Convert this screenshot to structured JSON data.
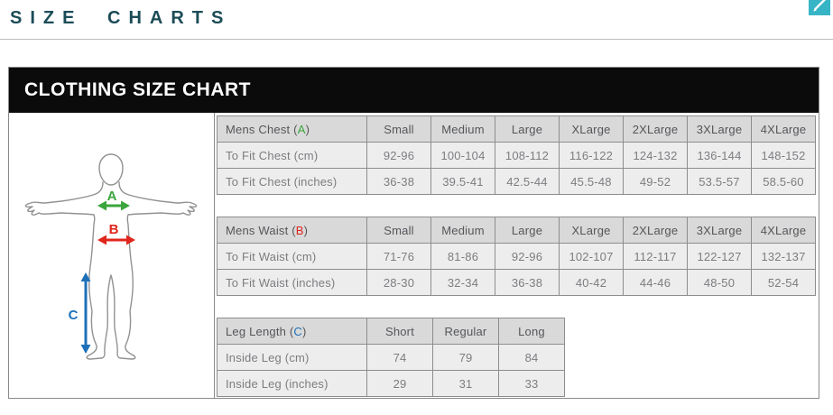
{
  "page": {
    "title": "SIZE CHARTS",
    "section_title": "CLOTHING SIZE CHART"
  },
  "edit_button": {
    "icon": "pencil-icon",
    "color": "#38b4c7"
  },
  "diagram": {
    "labels": {
      "chest": "A",
      "waist": "B",
      "leg": "C"
    },
    "colors": {
      "chest": "#3aa63c",
      "waist": "#e0251c",
      "leg": "#1d70b8",
      "body_outline": "#929292"
    }
  },
  "tables": [
    {
      "name": "mens-chest",
      "label_prefix": "Mens Chest (",
      "marker": "A",
      "label_suffix": ")",
      "marker_color": "#3aa63c",
      "columns": [
        "Small",
        "Medium",
        "Large",
        "XLarge",
        "2XLarge",
        "3XLarge",
        "4XLarge"
      ],
      "rows": [
        {
          "label": "To Fit Chest (cm)",
          "values": [
            "92-96",
            "100-104",
            "108-112",
            "116-122",
            "124-132",
            "136-144",
            "148-152"
          ]
        },
        {
          "label": "To Fit Chest (inches)",
          "values": [
            "36-38",
            "39.5-41",
            "42.5-44",
            "45.5-48",
            "49-52",
            "53.5-57",
            "58.5-60"
          ]
        }
      ]
    },
    {
      "name": "mens-waist",
      "label_prefix": "Mens Waist (",
      "marker": "B",
      "label_suffix": ")",
      "marker_color": "#e0251c",
      "columns": [
        "Small",
        "Medium",
        "Large",
        "XLarge",
        "2XLarge",
        "3XLarge",
        "4XLarge"
      ],
      "rows": [
        {
          "label": "To Fit Waist (cm)",
          "values": [
            "71-76",
            "81-86",
            "92-96",
            "102-107",
            "112-117",
            "122-127",
            "132-137"
          ]
        },
        {
          "label": "To Fit Waist (inches)",
          "values": [
            "28-30",
            "32-34",
            "36-38",
            "40-42",
            "44-46",
            "48-50",
            "52-54"
          ]
        }
      ]
    },
    {
      "name": "leg-length",
      "label_prefix": "Leg Length (",
      "marker": "C",
      "label_suffix": ")",
      "marker_color": "#1d70b8",
      "columns": [
        "Short",
        "Regular",
        "Long"
      ],
      "rows": [
        {
          "label": "Inside Leg (cm)",
          "values": [
            "74",
            "79",
            "84"
          ]
        },
        {
          "label": "Inside Leg (inches)",
          "values": [
            "29",
            "31",
            "33"
          ]
        }
      ]
    }
  ]
}
